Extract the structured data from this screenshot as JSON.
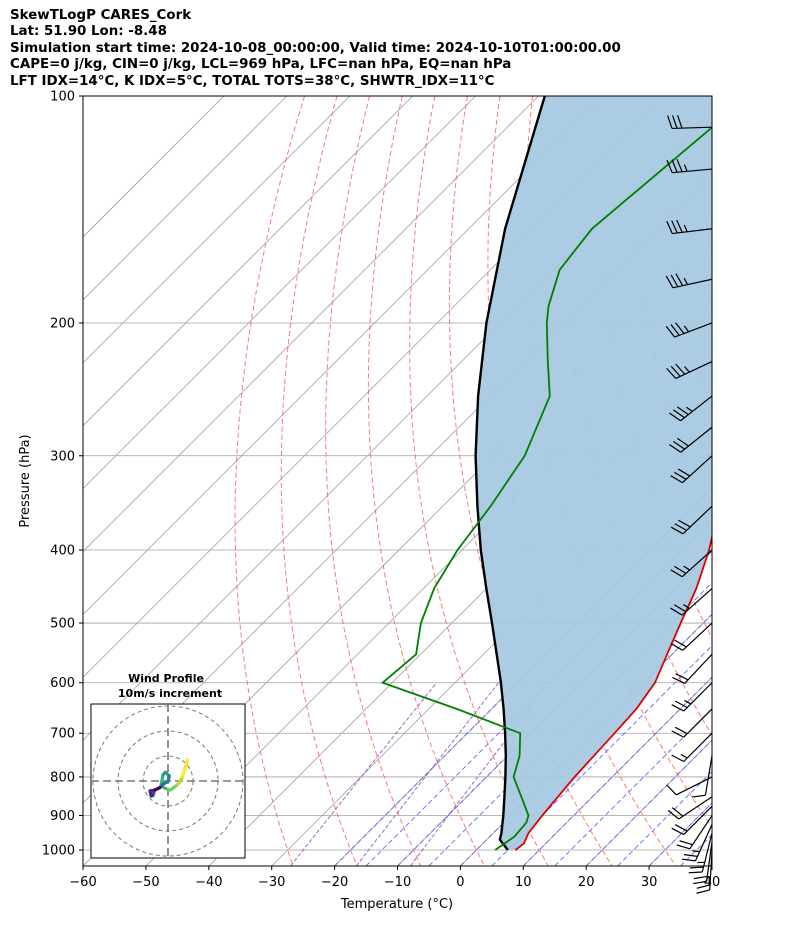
{
  "title_lines": [
    "SkewTLogP CARES_Cork",
    "Lat: 51.90   Lon: -8.48",
    "Simulation start time: 2024-10-08_00:00:00, Valid time: 2024-10-10T01:00:00.00",
    "CAPE=0 j/kg, CIN=0 j/kg, LCL=969 hPa, LFC=nan hPa, EQ=nan hPa",
    "LFT IDX=14$^\\circ$C, K IDX=5$^\\circ$C, TOTAL TOTS=38$^\\circ$C, SHWTR_IDX=11$^\\circ$C"
  ],
  "colors": {
    "temperature": "#e00000",
    "dewpoint": "#008000",
    "parcel": "#000000",
    "shading": "#a6c9e0",
    "dry_adiabat": "#ff6060",
    "moist_adiabat": "#5a5aff",
    "mixing_ratio": "#8b3fb8",
    "isotherm": "#a0a0a0",
    "barb": "#000000"
  },
  "chart_data": {
    "type": "line",
    "chart_kind": "skew-T log-P",
    "xlabel": "Temperature ($^\\circ$C)",
    "ylabel": "Pressure (hPa)",
    "xlim": [
      -60,
      40
    ],
    "ylim": [
      1050,
      100
    ],
    "y_scale": "log",
    "x_ticks": [
      -60,
      -50,
      -40,
      -30,
      -20,
      -10,
      0,
      10,
      20,
      30,
      40
    ],
    "x_tick_labels": [
      "−60",
      "−50",
      "−40",
      "−30",
      "−20",
      "−10",
      "0",
      "10",
      "20",
      "30",
      "40"
    ],
    "y_ticks": [
      100,
      200,
      300,
      400,
      500,
      600,
      700,
      800,
      900,
      1000
    ],
    "grid": true,
    "series": [
      {
        "role": "temperature",
        "points": [
          {
            "p": 1000,
            "t": 6.2
          },
          {
            "p": 980,
            "t": 6.5
          },
          {
            "p": 950,
            "t": 5.6
          },
          {
            "p": 900,
            "t": 5.0
          },
          {
            "p": 850,
            "t": 4.5
          },
          {
            "p": 800,
            "t": 4.0
          },
          {
            "p": 750,
            "t": 3.7
          },
          {
            "p": 700,
            "t": 3.4
          },
          {
            "p": 650,
            "t": 3.0
          },
          {
            "p": 600,
            "t": 1.8
          },
          {
            "p": 550,
            "t": -0.8
          },
          {
            "p": 500,
            "t": -3.6
          },
          {
            "p": 450,
            "t": -6.6
          },
          {
            "p": 400,
            "t": -10.7
          },
          {
            "p": 350,
            "t": -16.1
          },
          {
            "p": 300,
            "t": -22.5
          },
          {
            "p": 275,
            "t": -26.9
          },
          {
            "p": 250,
            "t": -30.6
          },
          {
            "p": 225,
            "t": -30.9
          },
          {
            "p": 200,
            "t": -31.6
          },
          {
            "p": 185,
            "t": -32.9
          },
          {
            "p": 170,
            "t": -34.3
          },
          {
            "p": 160,
            "t": -33.1
          },
          {
            "p": 150,
            "t": -32.3
          },
          {
            "p": 125,
            "t": -36.7
          },
          {
            "p": 110,
            "t": -40.8
          },
          {
            "p": 100,
            "t": -43.8
          }
        ]
      },
      {
        "role": "dewpoint",
        "points": [
          {
            "p": 1000,
            "t": 3.0
          },
          {
            "p": 960,
            "t": 3.9
          },
          {
            "p": 920,
            "t": 3.6
          },
          {
            "p": 900,
            "t": 2.8
          },
          {
            "p": 850,
            "t": -1.3
          },
          {
            "p": 800,
            "t": -5.7
          },
          {
            "p": 750,
            "t": -8.1
          },
          {
            "p": 700,
            "t": -11.6
          },
          {
            "p": 650,
            "t": -25.5
          },
          {
            "p": 600,
            "t": -41.5
          },
          {
            "p": 550,
            "t": -40.7
          },
          {
            "p": 500,
            "t": -44.9
          },
          {
            "p": 450,
            "t": -48.3
          },
          {
            "p": 400,
            "t": -50.7
          },
          {
            "p": 350,
            "t": -52.4
          },
          {
            "p": 300,
            "t": -55.0
          },
          {
            "p": 250,
            "t": -60.5
          },
          {
            "p": 225,
            "t": -66.3
          },
          {
            "p": 200,
            "t": -72.6
          },
          {
            "p": 190,
            "t": -75.0
          },
          {
            "p": 170,
            "t": -79.0
          },
          {
            "p": 150,
            "t": -80.4
          },
          {
            "p": 100,
            "t": -76.5
          }
        ]
      },
      {
        "role": "parcel",
        "points": [
          {
            "p": 1000,
            "t": 5.0
          },
          {
            "p": 969,
            "t": 2.1
          },
          {
            "p": 950,
            "t": 1.3
          },
          {
            "p": 900,
            "t": -1.2
          },
          {
            "p": 850,
            "t": -4.0
          },
          {
            "p": 800,
            "t": -7.0
          },
          {
            "p": 750,
            "t": -10.3
          },
          {
            "p": 700,
            "t": -14.0
          },
          {
            "p": 650,
            "t": -18.1
          },
          {
            "p": 600,
            "t": -22.7
          },
          {
            "p": 550,
            "t": -27.9
          },
          {
            "p": 500,
            "t": -33.6
          },
          {
            "p": 450,
            "t": -40.0
          },
          {
            "p": 400,
            "t": -47.0
          },
          {
            "p": 350,
            "t": -54.5
          },
          {
            "p": 300,
            "t": -62.8
          },
          {
            "p": 250,
            "t": -71.9
          },
          {
            "p": 200,
            "t": -82.2
          },
          {
            "p": 150,
            "t": -94.2
          },
          {
            "p": 100,
            "t": -109.0
          }
        ]
      }
    ],
    "dry_adiabats_theta_c": [
      -30,
      -20,
      -10,
      0,
      10,
      20,
      30,
      40,
      50,
      60,
      70,
      80,
      90,
      100,
      110,
      120
    ],
    "moist_adiabats_start_c": [
      -20,
      -15,
      -10,
      -5,
      0,
      5,
      10,
      15,
      20,
      25,
      30,
      35
    ],
    "mixing_ratio_lines_gkg": [
      0.4,
      1,
      2
    ],
    "wind_barbs": [
      {
        "p": 1000,
        "u_kt": 1,
        "v_kt": 18
      },
      {
        "p": 975,
        "u_kt": 3,
        "v_kt": 22
      },
      {
        "p": 950,
        "u_kt": 6,
        "v_kt": 24
      },
      {
        "p": 925,
        "u_kt": 10,
        "v_kt": 22
      },
      {
        "p": 900,
        "u_kt": 12,
        "v_kt": 18
      },
      {
        "p": 875,
        "u_kt": 14,
        "v_kt": 14
      },
      {
        "p": 850,
        "u_kt": 15,
        "v_kt": 10
      },
      {
        "p": 800,
        "u_kt": 10,
        "v_kt": 5
      },
      {
        "p": 750,
        "u_kt": 2,
        "v_kt": 12
      },
      {
        "p": 700,
        "u_kt": 10,
        "v_kt": 10
      },
      {
        "p": 650,
        "u_kt": 15,
        "v_kt": 15
      },
      {
        "p": 600,
        "u_kt": 16,
        "v_kt": 16
      },
      {
        "p": 550,
        "u_kt": 15,
        "v_kt": 16
      },
      {
        "p": 500,
        "u_kt": 15,
        "v_kt": 14
      },
      {
        "p": 450,
        "u_kt": 18,
        "v_kt": 16
      },
      {
        "p": 400,
        "u_kt": 20,
        "v_kt": 18
      },
      {
        "p": 350,
        "u_kt": 21,
        "v_kt": 20
      },
      {
        "p": 300,
        "u_kt": 22,
        "v_kt": 20
      },
      {
        "p": 275,
        "u_kt": 25,
        "v_kt": 20
      },
      {
        "p": 250,
        "u_kt": 28,
        "v_kt": 22
      },
      {
        "p": 225,
        "u_kt": 30,
        "v_kt": 14
      },
      {
        "p": 200,
        "u_kt": 32,
        "v_kt": 12
      },
      {
        "p": 175,
        "u_kt": 32,
        "v_kt": 7
      },
      {
        "p": 150,
        "u_kt": 33,
        "v_kt": 4
      },
      {
        "p": 125,
        "u_kt": 33,
        "v_kt": 3
      },
      {
        "p": 110,
        "u_kt": 32,
        "v_kt": 1
      }
    ],
    "inset": {
      "title_lines": [
        "Wind Profile",
        "10m/s increment"
      ],
      "ring_speeds_ms": [
        10,
        20,
        30
      ],
      "hodograph_ms": [
        [
          7.8,
          8.4
        ],
        [
          6.5,
          4.0
        ],
        [
          5.5,
          1.0
        ],
        [
          4.4,
          -0.8
        ],
        [
          3.0,
          -2.1
        ],
        [
          1.0,
          -3.6
        ],
        [
          -1.0,
          -3.0
        ],
        [
          -2.8,
          -2.0
        ],
        [
          -2.0,
          2.5
        ],
        [
          -1.0,
          3.5
        ],
        [
          0.5,
          2.0
        ],
        [
          0.0,
          -0.2
        ],
        [
          -1.8,
          -1.2
        ],
        [
          -3.5,
          -2.8
        ],
        [
          -5.4,
          -3.6
        ],
        [
          -6.0,
          -5.8
        ],
        [
          -6.7,
          -6.0
        ],
        [
          -7.2,
          -4.0
        ],
        [
          -5.2,
          -3.6
        ],
        [
          -3.2,
          -2.6
        ]
      ],
      "color_order_note": ""
    }
  }
}
